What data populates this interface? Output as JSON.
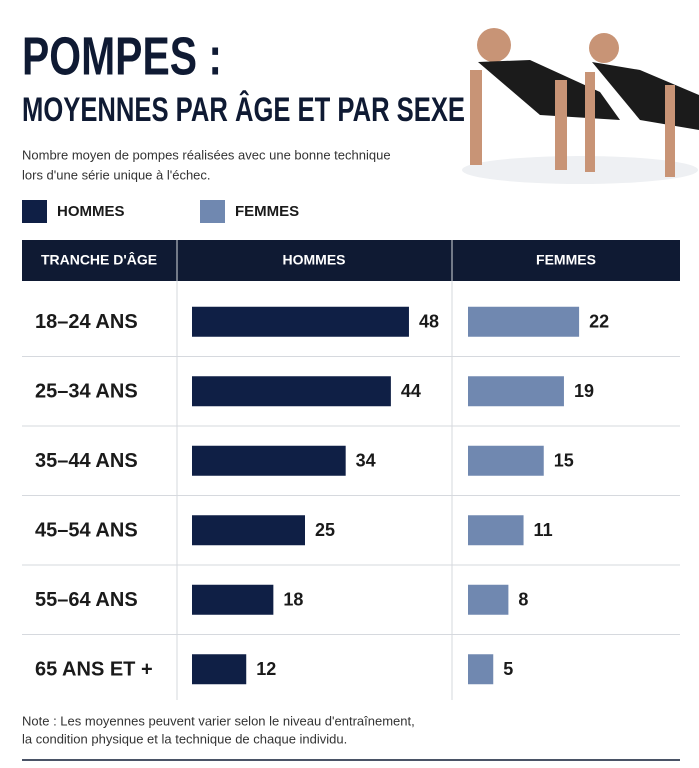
{
  "title": "POMPES :",
  "note": [
    "Note : Les moyennes peuvent varier selon le niveau d'entraînement,",
    "la condition physique et la technique de chaque individu."
  ],
  "chart_data": {
    "type": "bar",
    "title": "MOYENNES PAR ÂGE ET PAR SEXE",
    "subtitle": [
      "Nombre moyen de pompes réalisées avec une bonne technique",
      "lors d'une série unique à l'échec."
    ],
    "category_header": "TRANCHE D'ÂGE",
    "categories": [
      "18–24 ANS",
      "25–34 ANS",
      "35–44 ANS",
      "45–54 ANS",
      "55–64 ANS",
      "65 ANS ET +"
    ],
    "series": [
      {
        "name": "HOMMES",
        "color": "#0f1f45",
        "values": [
          48,
          44,
          34,
          25,
          18,
          12
        ]
      },
      {
        "name": "FEMMES",
        "color": "#7088b0",
        "values": [
          22,
          19,
          15,
          11,
          8,
          5
        ]
      }
    ]
  }
}
